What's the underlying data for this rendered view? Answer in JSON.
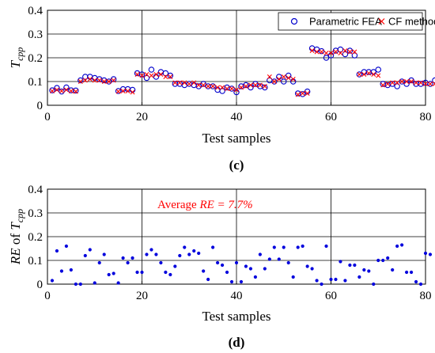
{
  "chart_data": [
    {
      "type": "scatter",
      "panel_label": "(c)",
      "xlabel": "Test samples",
      "ylabel": "T",
      "ylabel_sub": "cpp",
      "xlim": [
        0,
        80
      ],
      "ylim": [
        0,
        0.4
      ],
      "xticks": [
        0,
        20,
        40,
        60,
        80
      ],
      "yticks": [
        0,
        0.1,
        0.2,
        0.3,
        0.4
      ],
      "grid": true,
      "legend": "top-right",
      "series": [
        {
          "name": "Parametric FEA",
          "marker": "circle-open",
          "color": "#0000cc",
          "values": [
            0.063,
            0.073,
            0.058,
            0.075,
            0.063,
            0.062,
            0.105,
            0.12,
            0.12,
            0.115,
            0.11,
            0.105,
            0.1,
            0.11,
            0.06,
            0.068,
            0.068,
            0.065,
            0.135,
            0.13,
            0.115,
            0.15,
            0.12,
            0.14,
            0.135,
            0.125,
            0.09,
            0.09,
            0.085,
            0.09,
            0.085,
            0.08,
            0.09,
            0.08,
            0.08,
            0.065,
            0.06,
            0.075,
            0.07,
            0.055,
            0.08,
            0.085,
            0.075,
            0.09,
            0.08,
            0.075,
            0.105,
            0.1,
            0.12,
            0.1,
            0.125,
            0.1,
            0.05,
            0.047,
            0.058,
            0.24,
            0.235,
            0.228,
            0.2,
            0.21,
            0.23,
            0.235,
            0.215,
            0.23,
            0.21,
            0.13,
            0.14,
            0.14,
            0.14,
            0.15,
            0.09,
            0.085,
            0.09,
            0.08,
            0.1,
            0.09,
            0.105,
            0.09,
            0.09,
            0.095,
            0.09,
            0.105
          ]
        },
        {
          "name": "CF method",
          "marker": "x",
          "color": "#ff0000",
          "values": [
            0.06,
            0.065,
            0.06,
            0.065,
            0.06,
            0.058,
            0.1,
            0.105,
            0.11,
            0.105,
            0.105,
            0.1,
            0.1,
            0.105,
            0.058,
            0.06,
            0.06,
            0.055,
            0.13,
            0.125,
            0.13,
            0.125,
            0.13,
            0.13,
            0.12,
            0.12,
            0.095,
            0.095,
            0.095,
            0.09,
            0.095,
            0.085,
            0.085,
            0.08,
            0.08,
            0.075,
            0.075,
            0.07,
            0.07,
            0.065,
            0.075,
            0.08,
            0.085,
            0.085,
            0.085,
            0.08,
            0.12,
            0.1,
            0.11,
            0.12,
            0.115,
            0.11,
            0.045,
            0.05,
            0.05,
            0.23,
            0.225,
            0.225,
            0.22,
            0.22,
            0.225,
            0.22,
            0.23,
            0.225,
            0.225,
            0.13,
            0.13,
            0.135,
            0.13,
            0.125,
            0.085,
            0.09,
            0.095,
            0.095,
            0.1,
            0.1,
            0.1,
            0.095,
            0.095,
            0.09,
            0.09,
            0.09
          ]
        }
      ]
    },
    {
      "type": "scatter",
      "panel_label": "(d)",
      "xlabel": "Test samples",
      "ylabel": "RE",
      "ylabel_mid": " of ",
      "ylabel_T": "T",
      "ylabel_sub": "cpp",
      "xlim": [
        0,
        80
      ],
      "ylim": [
        0,
        0.4
      ],
      "xticks": [
        0,
        20,
        40,
        60,
        80
      ],
      "yticks": [
        0,
        0.1,
        0.2,
        0.3,
        0.4
      ],
      "grid": true,
      "annotation_prefix": "Average ",
      "annotation_italic": "RE = 7.7%",
      "annotation_position": [
        25,
        0.33
      ],
      "series": [
        {
          "marker": "dot",
          "color": "#0000dd",
          "values": [
            0.015,
            0.14,
            0.055,
            0.16,
            0.06,
            0.0,
            0.0,
            0.12,
            0.145,
            0.005,
            0.09,
            0.125,
            0.04,
            0.045,
            0.005,
            0.11,
            0.09,
            0.11,
            0.05,
            0.05,
            0.125,
            0.145,
            0.125,
            0.09,
            0.05,
            0.04,
            0.075,
            0.12,
            0.155,
            0.125,
            0.14,
            0.13,
            0.055,
            0.02,
            0.155,
            0.09,
            0.08,
            0.05,
            0.01,
            0.09,
            0.01,
            0.075,
            0.065,
            0.03,
            0.125,
            0.065,
            0.105,
            0.155,
            0.105,
            0.155,
            0.09,
            0.03,
            0.155,
            0.16,
            0.075,
            0.065,
            0.015,
            0.0,
            0.16,
            0.02,
            0.02,
            0.095,
            0.015,
            0.08,
            0.08,
            0.03,
            0.06,
            0.055,
            0.0,
            0.1,
            0.1,
            0.11,
            0.06,
            0.16,
            0.165,
            0.05,
            0.05,
            0.01,
            0.0,
            0.13,
            0.125
          ]
        }
      ]
    }
  ]
}
